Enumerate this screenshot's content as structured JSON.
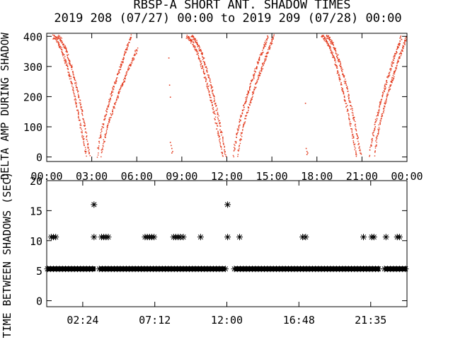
{
  "title": "RBSP-A SHORT ANT. SHADOW TIMES",
  "subtitle": "2019 208 (07/27) 00:00 to 2019 209 (07/28) 00:00",
  "chart_data": [
    {
      "type": "scatter",
      "ylabel": "DELTA AMP DURING SHADOW",
      "xlim_hours": [
        0,
        24
      ],
      "ylim": [
        -15,
        410
      ],
      "yticks": [
        "0",
        "100",
        "200",
        "300",
        "400"
      ],
      "ytick_values": [
        0,
        100,
        200,
        300,
        400
      ],
      "xticks": [
        "00:00",
        "03:00",
        "06:00",
        "09:00",
        "12:00",
        "15:00",
        "18:00",
        "21:00",
        "00:00"
      ],
      "xtick_hours": [
        0,
        3,
        6,
        9,
        12,
        15,
        18,
        21,
        24
      ],
      "color": "#e33b1e",
      "arcs": [
        {
          "branch": "down",
          "from_hour": 0.4,
          "to_hour": 2.6,
          "y_start": 400,
          "y_end": 5
        },
        {
          "branch": "down",
          "from_hour": 0.7,
          "to_hour": 2.85,
          "y_start": 400,
          "y_end": 5
        },
        {
          "branch": "up",
          "from_hour": 3.35,
          "to_hour": 5.6,
          "y_start": 5,
          "y_end": 400
        },
        {
          "branch": "up",
          "from_hour": 3.6,
          "to_hour": 6.0,
          "y_start": 5,
          "y_end": 360
        },
        {
          "branch": "down",
          "from_hour": 9.3,
          "to_hour": 11.7,
          "y_start": 400,
          "y_end": 5
        },
        {
          "branch": "down",
          "from_hour": 9.6,
          "to_hour": 11.9,
          "y_start": 400,
          "y_end": 5
        },
        {
          "branch": "up",
          "from_hour": 12.4,
          "to_hour": 14.7,
          "y_start": 5,
          "y_end": 400
        },
        {
          "branch": "up",
          "from_hour": 12.7,
          "to_hour": 15.1,
          "y_start": 5,
          "y_end": 400
        },
        {
          "branch": "down",
          "from_hour": 18.3,
          "to_hour": 20.6,
          "y_start": 400,
          "y_end": 5
        },
        {
          "branch": "down",
          "from_hour": 18.6,
          "to_hour": 20.9,
          "y_start": 400,
          "y_end": 5
        },
        {
          "branch": "up",
          "from_hour": 21.5,
          "to_hour": 23.6,
          "y_start": 5,
          "y_end": 400
        },
        {
          "branch": "up",
          "from_hour": 21.8,
          "to_hour": 23.95,
          "y_start": 5,
          "y_end": 400
        }
      ],
      "scattered_points": [
        {
          "hour": 8.1,
          "y": 330
        },
        {
          "hour": 8.15,
          "y": 240
        },
        {
          "hour": 8.2,
          "y": 200
        },
        {
          "hour": 8.2,
          "y": 50
        },
        {
          "hour": 8.25,
          "y": 40
        },
        {
          "hour": 8.3,
          "y": 30
        },
        {
          "hour": 8.35,
          "y": 20
        },
        {
          "hour": 8.3,
          "y": 15
        },
        {
          "hour": 17.2,
          "y": 180
        },
        {
          "hour": 17.25,
          "y": 30
        },
        {
          "hour": 17.3,
          "y": 20
        },
        {
          "hour": 17.35,
          "y": 15
        },
        {
          "hour": 17.3,
          "y": 10
        }
      ]
    },
    {
      "type": "scatter",
      "ylabel": "TIME BETWEEN SHADOWS (SEC)",
      "marker": "asterisk",
      "xlim_hours": [
        0,
        24
      ],
      "ylim": [
        -1,
        20
      ],
      "yticks": [
        "0",
        "5",
        "10",
        "15",
        "20"
      ],
      "ytick_values": [
        0,
        5,
        10,
        15,
        20
      ],
      "xticks": [
        "02:24",
        "07:12",
        "12:00",
        "16:48",
        "21:35"
      ],
      "xtick_hours": [
        2.4,
        7.2,
        12.0,
        16.8,
        21.5833
      ],
      "baseline": {
        "y": 5.3,
        "segments_hours": [
          [
            0.05,
            3.25
          ],
          [
            3.5,
            11.9
          ],
          [
            12.5,
            22.2
          ],
          [
            22.5,
            24.0
          ]
        ]
      },
      "points": [
        {
          "hour": 0.3,
          "y": 10.6
        },
        {
          "hour": 0.45,
          "y": 10.6
        },
        {
          "hour": 0.6,
          "y": 10.6
        },
        {
          "hour": 3.15,
          "y": 16.0
        },
        {
          "hour": 3.15,
          "y": 10.6
        },
        {
          "hour": 3.65,
          "y": 10.6
        },
        {
          "hour": 3.8,
          "y": 10.6
        },
        {
          "hour": 3.95,
          "y": 10.6
        },
        {
          "hour": 4.1,
          "y": 10.6
        },
        {
          "hour": 6.55,
          "y": 10.6
        },
        {
          "hour": 6.7,
          "y": 10.6
        },
        {
          "hour": 6.85,
          "y": 10.6
        },
        {
          "hour": 7.0,
          "y": 10.6
        },
        {
          "hour": 7.15,
          "y": 10.6
        },
        {
          "hour": 8.45,
          "y": 10.6
        },
        {
          "hour": 8.6,
          "y": 10.6
        },
        {
          "hour": 8.75,
          "y": 10.6
        },
        {
          "hour": 8.9,
          "y": 10.6
        },
        {
          "hour": 9.1,
          "y": 10.6
        },
        {
          "hour": 10.25,
          "y": 10.6
        },
        {
          "hour": 12.05,
          "y": 16.0
        },
        {
          "hour": 12.05,
          "y": 10.6
        },
        {
          "hour": 12.85,
          "y": 10.6
        },
        {
          "hour": 17.05,
          "y": 10.6
        },
        {
          "hour": 17.25,
          "y": 10.6
        },
        {
          "hour": 21.1,
          "y": 10.6
        },
        {
          "hour": 21.65,
          "y": 10.6
        },
        {
          "hour": 21.8,
          "y": 10.6
        },
        {
          "hour": 22.6,
          "y": 10.6
        },
        {
          "hour": 23.35,
          "y": 10.6
        },
        {
          "hour": 23.5,
          "y": 10.6
        }
      ]
    }
  ]
}
